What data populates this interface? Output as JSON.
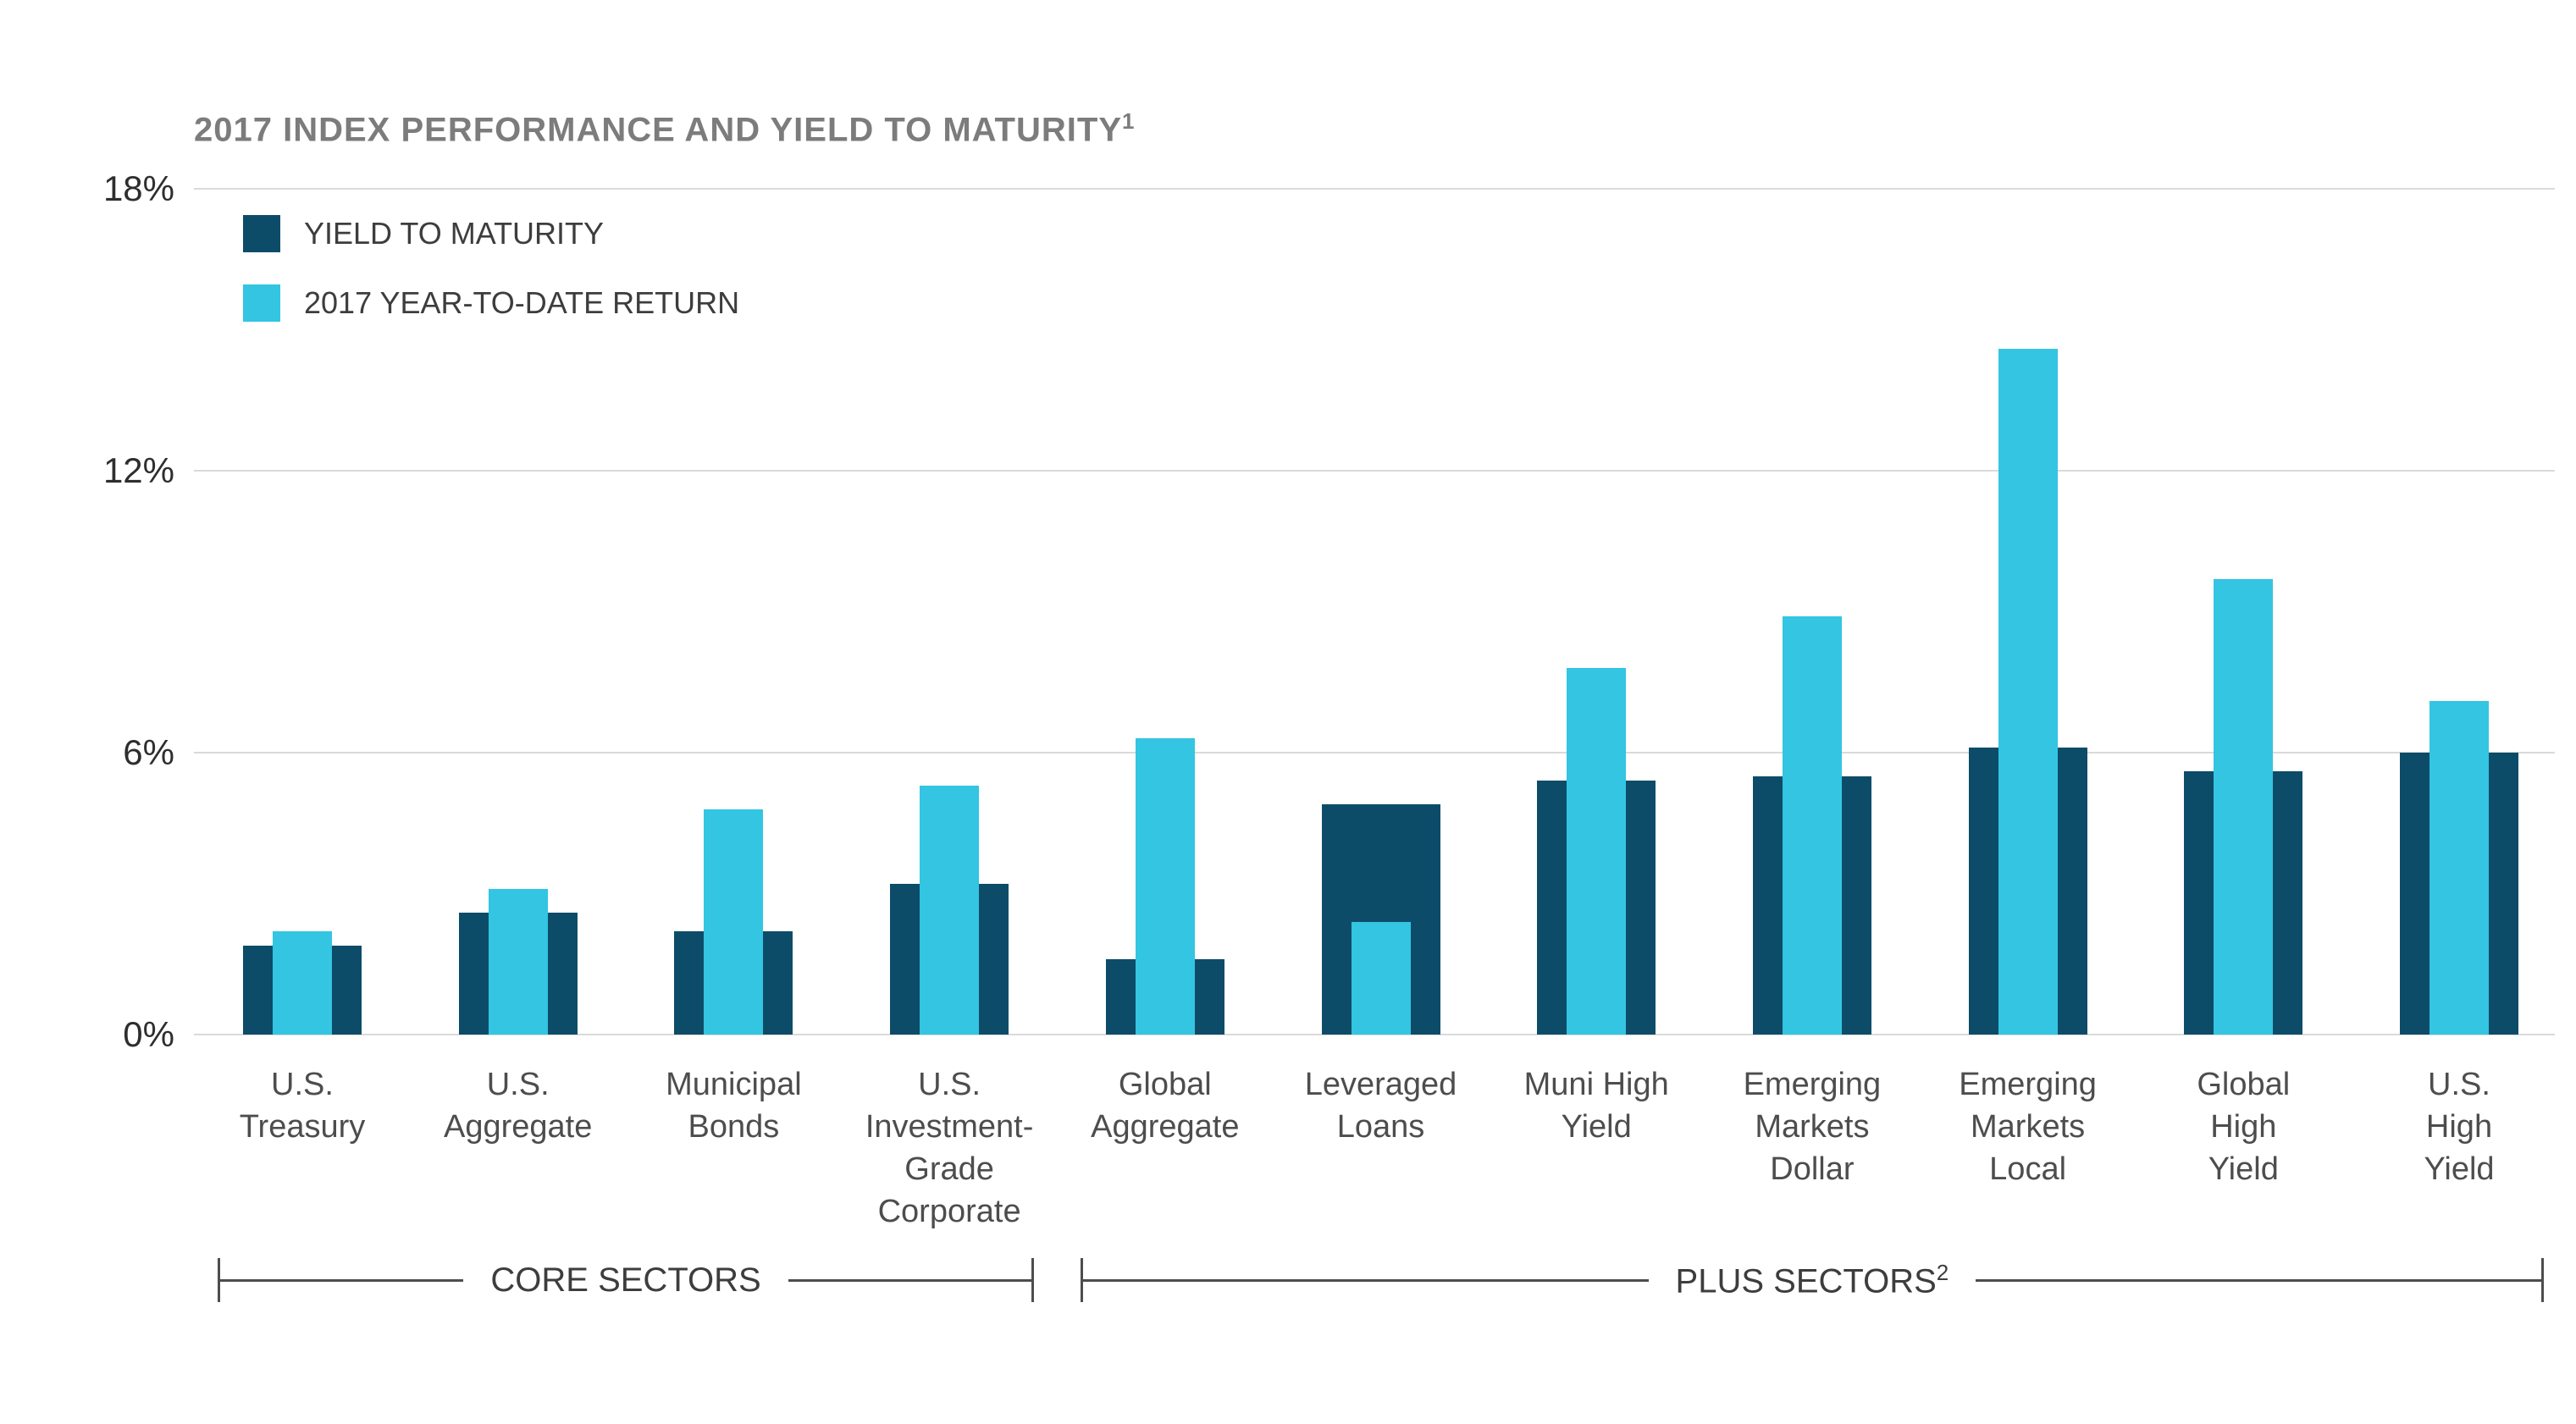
{
  "chart_data": {
    "type": "bar",
    "title": "2017 INDEX PERFORMANCE AND YIELD TO MATURITY",
    "title_superscript": "1",
    "categories": [
      "U.S.\nTreasury",
      "U.S.\nAggregate",
      "Municipal\nBonds",
      "U.S.\nInvestment-\nGrade\nCorporate",
      "Global\nAggregate",
      "Leveraged\nLoans",
      "Muni High\nYield",
      "Emerging\nMarkets\nDollar",
      "Emerging\nMarkets\nLocal",
      "Global\nHigh\nYield",
      "U.S.\nHigh\nYield"
    ],
    "series": [
      {
        "name": "YIELD TO MATURITY",
        "color": "#0D4C68",
        "values": [
          1.9,
          2.6,
          2.2,
          3.2,
          1.6,
          4.9,
          5.4,
          5.5,
          6.1,
          5.6,
          6.0
        ]
      },
      {
        "name": "2017 YEAR-TO-DATE RETURN",
        "color": "#33C5E2",
        "values": [
          2.2,
          3.1,
          4.8,
          5.3,
          6.3,
          2.4,
          7.8,
          8.9,
          14.6,
          9.7,
          7.1
        ]
      }
    ],
    "ylim": [
      0,
      18
    ],
    "yticks": [
      {
        "label": "0%",
        "value": 0
      },
      {
        "label": "6%",
        "value": 6
      },
      {
        "label": "12%",
        "value": 12
      },
      {
        "label": "18%",
        "value": 18
      }
    ],
    "groups": [
      {
        "label": "CORE SECTORS",
        "superscript": "",
        "start": 0,
        "end": 3
      },
      {
        "label": "PLUS SECTORS",
        "superscript": "2",
        "start": 4,
        "end": 10
      }
    ],
    "grid": true,
    "legend_position": "top-left",
    "gridline_color": "#DADADA"
  }
}
